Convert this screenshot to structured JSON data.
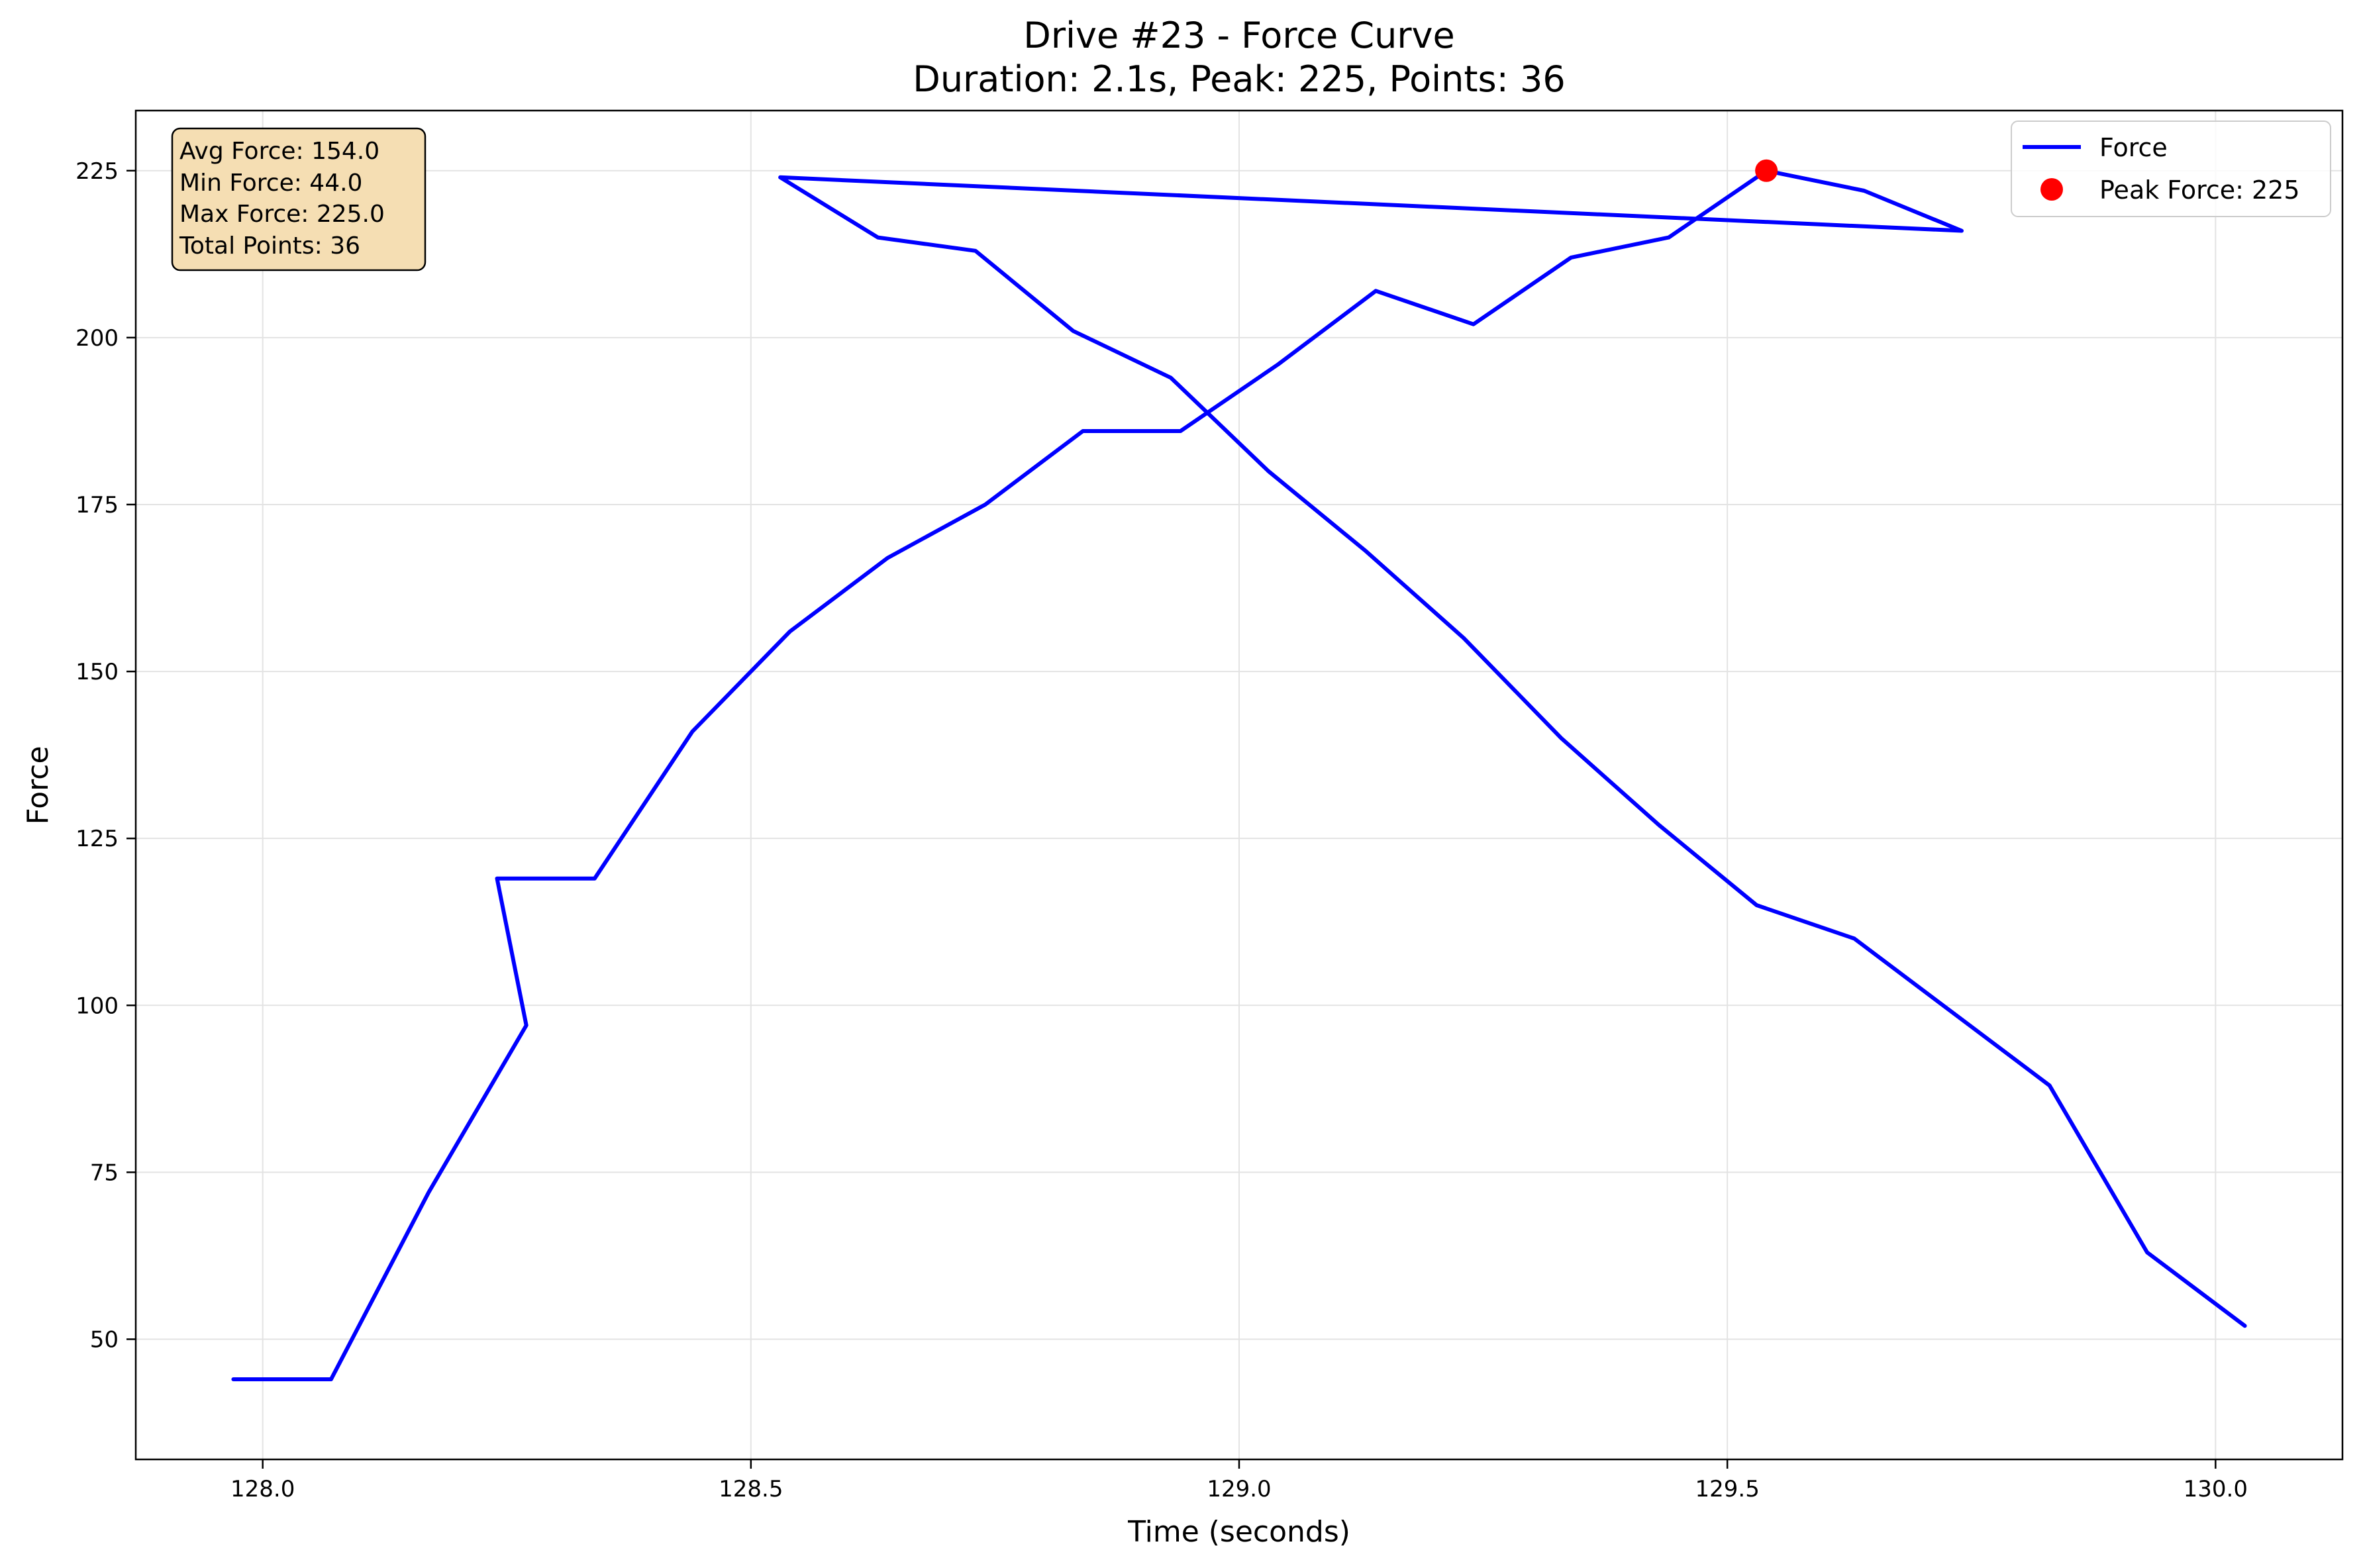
{
  "chart_data": {
    "type": "line",
    "title": "Drive #23 - Force Curve",
    "subtitle": "Duration: 2.1s, Peak: 225, Points: 36",
    "xlabel": "Time (seconds)",
    "ylabel": "Force",
    "xlim": [
      127.87,
      130.13
    ],
    "ylim": [
      32,
      234
    ],
    "xticks": [
      128.0,
      128.5,
      129.0,
      129.5,
      130.0
    ],
    "xtick_labels": [
      "128.0",
      "128.5",
      "129.0",
      "129.5",
      "130.0"
    ],
    "yticks": [
      50,
      75,
      100,
      125,
      150,
      175,
      200,
      225
    ],
    "ytick_labels": [
      "50",
      "75",
      "100",
      "125",
      "150",
      "175",
      "200",
      "225"
    ],
    "grid": true,
    "legend_position": "top-right",
    "series": [
      {
        "name": "Force",
        "color": "#0000ff",
        "x": [
          127.97,
          128.07,
          128.17,
          128.27,
          128.24,
          128.34,
          128.44,
          128.54,
          128.64,
          128.74,
          128.84,
          128.94,
          129.04,
          129.14,
          129.24,
          129.34,
          129.44,
          129.54,
          129.64,
          129.74,
          128.53,
          128.63,
          128.73,
          128.83,
          128.93,
          129.03,
          129.13,
          129.23,
          129.33,
          129.43,
          129.53,
          129.63,
          129.73,
          129.83,
          129.93,
          130.03
        ],
        "y": [
          44,
          44,
          72,
          97,
          119,
          119,
          141,
          156,
          167,
          175,
          186,
          186,
          196,
          207,
          202,
          212,
          215,
          225,
          222,
          216,
          224,
          215,
          213,
          201,
          194,
          180,
          168,
          155,
          140,
          127,
          115,
          110,
          99,
          88,
          63,
          52
        ]
      }
    ],
    "peak": {
      "name": "Peak Force: 225",
      "x": 129.54,
      "y": 225,
      "color": "#ff0000"
    },
    "stats_box": [
      "Avg Force: 154.0",
      "Min Force: 44.0",
      "Max Force: 225.0",
      "Total Points: 36"
    ],
    "stats_box_color": "#f5deb3"
  }
}
